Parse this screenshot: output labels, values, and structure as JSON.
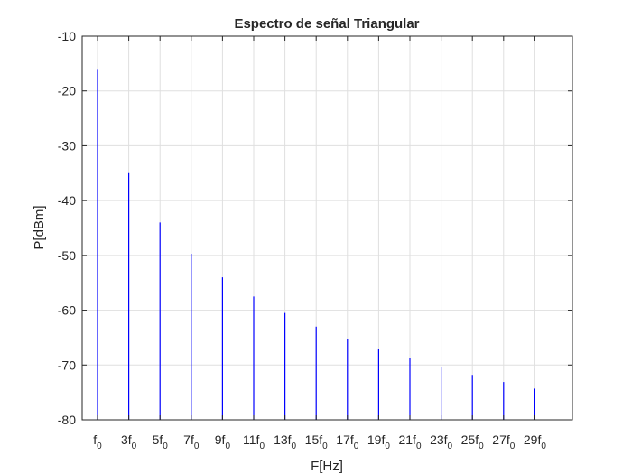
{
  "chart_data": {
    "type": "bar",
    "title": "Espectro de señal Triangular",
    "xlabel": "F[Hz]",
    "ylabel": "P[dBm]",
    "ylim": [
      -80,
      -10
    ],
    "yticks": [
      -10,
      -20,
      -30,
      -40,
      -50,
      -60,
      -70,
      -80
    ],
    "grid": true,
    "color": "#0000ff",
    "categories": [
      {
        "main": "f",
        "sub": "0"
      },
      {
        "main": "3f",
        "sub": "0"
      },
      {
        "main": "5f",
        "sub": "0"
      },
      {
        "main": "7f",
        "sub": "0"
      },
      {
        "main": "9f",
        "sub": "0"
      },
      {
        "main": "11f",
        "sub": "0"
      },
      {
        "main": "13f",
        "sub": "0"
      },
      {
        "main": "15f",
        "sub": "0"
      },
      {
        "main": "17f",
        "sub": "0"
      },
      {
        "main": "19f",
        "sub": "0"
      },
      {
        "main": "21f",
        "sub": "0"
      },
      {
        "main": "23f",
        "sub": "0"
      },
      {
        "main": "25f",
        "sub": "0"
      },
      {
        "main": "27f",
        "sub": "0"
      },
      {
        "main": "29f",
        "sub": "0"
      }
    ],
    "values": [
      -16,
      -35,
      -44,
      -49.7,
      -54,
      -57.5,
      -60.5,
      -63,
      -65.2,
      -67.1,
      -68.8,
      -70.3,
      -71.8,
      -73.1,
      -74.3
    ]
  }
}
